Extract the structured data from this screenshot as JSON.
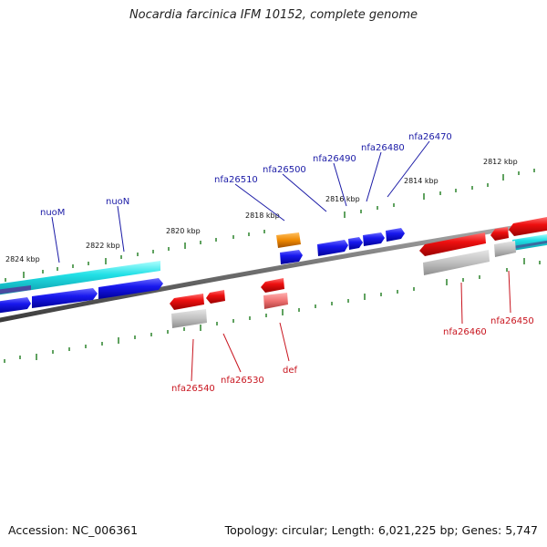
{
  "title": "Nocardia farcinica IFM 10152, complete genome",
  "accession": "Accession: NC_006361",
  "summary": "Topology: circular; Length: 6,021,225 bp; Genes: 5,747",
  "ticks": [
    "2824 kbp",
    "2822 kbp",
    "2820 kbp",
    "2818 kbp",
    "2816 kbp",
    "2814 kbp",
    "2812 kbp"
  ],
  "genes_top": [
    "nuoM",
    "nuoN",
    "nfa26510",
    "nfa26500",
    "nfa26490",
    "nfa26480",
    "nfa26470"
  ],
  "genes_bottom": [
    "nfa26540",
    "nfa26530",
    "def",
    "nfa26460",
    "nfa26450"
  ],
  "colors": {
    "forward_gene": "#1414e6",
    "reverse_gene": "#e61414",
    "rna": "#ee8800",
    "cds_shadow": "#b8b8b8",
    "operon": "#22e0e6",
    "tick": "#1c7a1c",
    "axis": "#6e6e6e"
  }
}
